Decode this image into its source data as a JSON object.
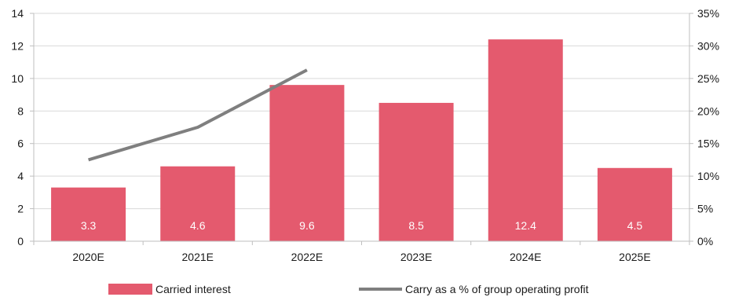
{
  "chart_data": {
    "type": "bar",
    "categories": [
      "2020E",
      "2021E",
      "2022E",
      "2023E",
      "2024E",
      "2025E"
    ],
    "series": [
      {
        "name": "Carried interest",
        "type": "bar",
        "axis": "left",
        "values": [
          3.3,
          4.6,
          9.6,
          8.5,
          12.4,
          4.5
        ],
        "data_labels": [
          "3.3",
          "4.6",
          "9.6",
          "8.5",
          "12.4",
          "4.5"
        ],
        "color": "#E45A6E"
      },
      {
        "name": "Carry as a % of group operating profit",
        "type": "line",
        "axis": "right",
        "values": [
          12.5,
          17.5,
          26.3,
          null,
          null,
          null
        ],
        "color": "#7F7F7F"
      }
    ],
    "y_left": {
      "ticks": [
        "0",
        "2",
        "4",
        "6",
        "8",
        "10",
        "12",
        "14"
      ],
      "ylim": [
        0,
        14
      ]
    },
    "y_right": {
      "ticks": [
        "0%",
        "5%",
        "10%",
        "15%",
        "20%",
        "25%",
        "30%",
        "35%"
      ],
      "ylim": [
        0,
        35
      ]
    },
    "grid": {
      "horizontal": true,
      "color": "#D9D9D9"
    },
    "legend": {
      "position": "bottom"
    },
    "title": "",
    "xlabel": "",
    "ylabel": ""
  }
}
